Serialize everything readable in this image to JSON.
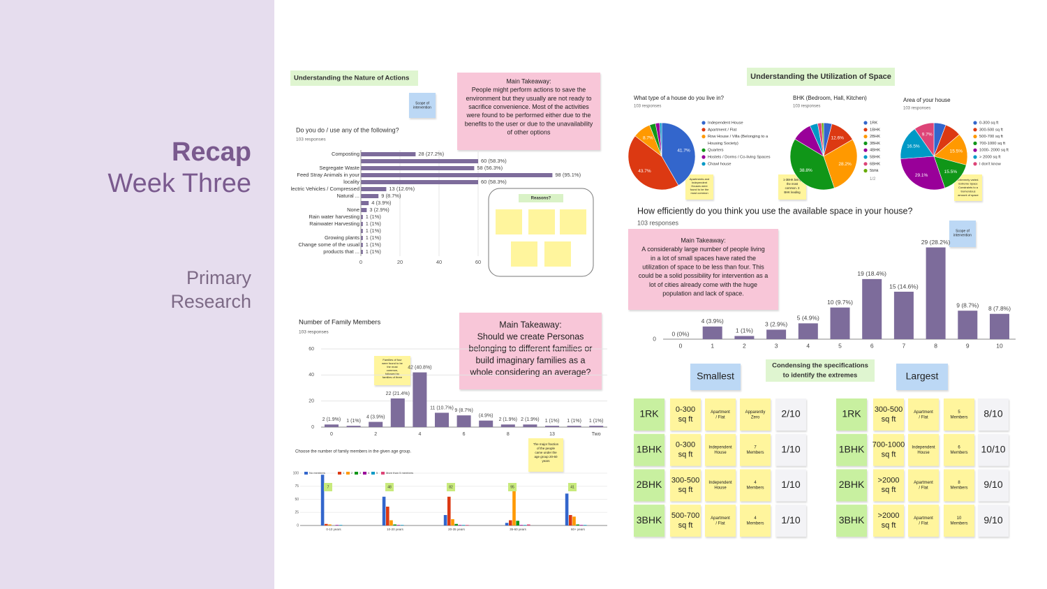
{
  "sidebar": {
    "title": "Recap",
    "subtitle": "Week Three",
    "section": [
      "Primary",
      "Research"
    ]
  },
  "labels": {
    "nature": "Understanding the Nature of Actions",
    "space": "Understanding the Utilization of Space",
    "condense": [
      "Condensing the specifications",
      "to identify the extremes"
    ],
    "reasons": "Reasons?"
  },
  "notes": [
    {
      "lines": [
        "Main Takeaway:",
        "People might perform actions to save the",
        "environment but they usually are not ready to",
        "sacrifice convenience. Most of the activities",
        "were found to be performed either due to the",
        "benefits to the user or due to the unavailability",
        "of other options"
      ]
    },
    {
      "lines": [
        "Main Takeaway:",
        "Should we create Personas",
        "belonging to different families or",
        "build imaginary families as a",
        "whole considering an average?"
      ]
    },
    {
      "lines": [
        "Main Takeaway:",
        "A considerably large number of people living",
        "in a lot of small spaces have rated the",
        "utilization of space to be less than four. This",
        "could be a solid possibility for intervention as a",
        "lot of cities already come with the huge",
        "population and lack of space."
      ]
    },
    {
      "lines": [
        "Scope of",
        "intervention"
      ]
    },
    {
      "lines": [
        "Scope of",
        "intervention"
      ]
    },
    {
      "lines": [
        "Families of four",
        "were found to be",
        "the most",
        "common,",
        "followed by",
        "families of three"
      ]
    },
    {
      "lines": [
        "The major fraction",
        "of the people",
        "came under the",
        "age group 20-60",
        "years"
      ]
    },
    {
      "lines": [
        "Apartments and",
        "Independent",
        "Houses were",
        "found to be the",
        "most common"
      ]
    },
    {
      "lines": [
        "1-3BHK being",
        "the most",
        "common. 3",
        "BHK leading"
      ]
    },
    {
      "lines": [
        "Extremely varied.",
        "Extreme Space",
        "Constraints to a",
        "tremendous",
        "amount of space"
      ]
    }
  ],
  "chart_data": [
    {
      "type": "hbar",
      "title": "Do you do / use any of the following?",
      "subtitle": "103 responses",
      "color": "#7d6c9b",
      "categories": [
        "Composting",
        null,
        "Segregate Waste",
        "Feed Stray Animals in your",
        "locality",
        "lectric Vehicles / Compressed",
        "Natural ...",
        null,
        "None",
        "Rain water harvesting",
        "Rainwater Harvesting",
        null,
        "Growing plants",
        "Change some of the usual",
        "products that ..."
      ],
      "values": [
        28,
        60,
        58,
        98,
        60,
        13,
        9,
        4,
        3,
        1,
        1,
        1,
        1,
        1,
        1
      ],
      "value_labels": [
        "28 (27.2%)",
        "60 (58.3%)",
        "58 (56.3%)",
        "98 (95.1%)",
        "60 (58.3%)",
        "13 (12.6%)",
        "9 (8.7%)",
        "4 (3.9%)",
        "3 (2.9%)",
        "1 (1%)",
        "1 (1%)",
        "1 (1%)",
        "1 (1%)",
        "1 (1%)",
        "1 (1%)"
      ],
      "xlim": [
        0,
        100
      ],
      "xticks": [
        0,
        20,
        40,
        60
      ],
      "grid": true
    },
    {
      "type": "bar",
      "title": "Number of Family Members",
      "subtitle": "103 responses",
      "color": "#7d6c9b",
      "categories": [
        "0",
        null,
        "2",
        null,
        "4",
        null,
        "6",
        null,
        "8",
        null,
        "13",
        null,
        "Two"
      ],
      "values": [
        2,
        1,
        4,
        22,
        42,
        11,
        9,
        5,
        2,
        2,
        1,
        1,
        1
      ],
      "value_labels": [
        "2 (1.9%)",
        "1 (1%)",
        "4 (3.9%)",
        "22 (21.4%)",
        "42 (40.8%)",
        "11 (10.7%)",
        "9 (8.7%)",
        "(4.9%)",
        "2 (1.9%)",
        "2 (1.9%)",
        "1 (1%)",
        "1 (1%)",
        "1 (1%)"
      ],
      "ylim": [
        0,
        60
      ],
      "yticks": [
        0,
        20,
        40,
        60
      ],
      "grid": true
    },
    {
      "type": "grouped",
      "title": "Choose the number of family members in the given age group.",
      "categories": [
        "0-10 years",
        "10-20 years",
        "20-35 years",
        "35-60 years",
        "60+ years"
      ],
      "series": [
        {
          "name": "No members",
          "color": "#3366cc",
          "values": [
            97,
            55,
            20,
            5,
            61
          ]
        },
        {
          "name": "1",
          "color": "#dc3912",
          "values": [
            3,
            36,
            55,
            10,
            20
          ]
        },
        {
          "name": "2",
          "color": "#ff9900",
          "values": [
            2,
            10,
            12,
            74,
            17
          ]
        },
        {
          "name": "3",
          "color": "#109618",
          "values": [
            0,
            2,
            3,
            9,
            2
          ]
        },
        {
          "name": "4",
          "color": "#990099",
          "values": [
            1,
            1,
            1,
            1,
            1
          ]
        },
        {
          "name": "5",
          "color": "#0099c6",
          "values": [
            1,
            1,
            1,
            1,
            1
          ]
        },
        {
          "name": "More than 5 members",
          "color": "#dd4477",
          "values": [
            0,
            0,
            1,
            2,
            0
          ]
        }
      ],
      "callouts": [
        7,
        48,
        82,
        95,
        41
      ],
      "ylim": [
        0,
        100
      ],
      "yticks": [
        0,
        25,
        50,
        75,
        100
      ],
      "grid": true
    },
    {
      "type": "pie",
      "title": "What type of a house do you live in?",
      "subtitle": "103 responses",
      "categories": [
        "Independent House",
        "Apartment / Flat",
        "Row House / Villa (Belonging to a",
        "Quarters",
        "Hostels / Dorms / Co-living Spaces",
        "Chawl house"
      ],
      "legend_extra": "Housing Society)",
      "values": [
        41.7,
        43.7,
        8.7,
        2.9,
        2,
        1
      ],
      "value_labels": [
        "41.7%",
        "43.7%",
        "8.7%",
        null,
        null,
        null
      ],
      "colors": [
        "#3366cc",
        "#dc3912",
        "#ff9900",
        "#109618",
        "#990099",
        "#0099c6"
      ]
    },
    {
      "type": "pie",
      "title": "BHK (Bedroom, Hall, Kitchen)",
      "subtitle": "103 responses",
      "pager": "1/2",
      "categories": [
        "1RK",
        "1BHK",
        "2BHK",
        "3BHK",
        "4BHK",
        "5BHK",
        "6BHK",
        "5bhk"
      ],
      "values": [
        4,
        12.6,
        28.2,
        38.8,
        9.7,
        3.8,
        1.9,
        1
      ],
      "value_labels": [
        null,
        "12.6%",
        "28.2%",
        "38.8%",
        null,
        null,
        null,
        null
      ],
      "colors": [
        "#3366cc",
        "#dc3912",
        "#ff9900",
        "#109618",
        "#990099",
        "#0099c6",
        "#dd4477",
        "#66aa00"
      ]
    },
    {
      "type": "pie",
      "title": "Area of your house",
      "subtitle": "103 responses",
      "categories": [
        "0-300 sq ft",
        "300-500 sq ft",
        "500-700 sq ft",
        "700-1000 sq ft",
        "1000- 2000 sq ft",
        "> 2000 sq ft",
        "I don't know"
      ],
      "values": [
        5.8,
        7.9,
        15.5,
        15.5,
        29.1,
        16.5,
        9.7
      ],
      "value_labels": [
        null,
        null,
        "15.5%",
        "15.5%",
        "29.1%",
        "16.5%",
        "9.7%"
      ],
      "colors": [
        "#3366cc",
        "#dc3912",
        "#ff9900",
        "#109618",
        "#990099",
        "#0099c6",
        "#dd4477"
      ]
    },
    {
      "type": "bar",
      "title": "How efficiently do you think you use the available space in your house?",
      "subtitle": "103 responses",
      "color": "#7d6c9b",
      "categories": [
        "0",
        "1",
        "2",
        "3",
        "4",
        "5",
        "6",
        "7",
        "8",
        "9",
        "10"
      ],
      "values": [
        0,
        4,
        1,
        3,
        5,
        10,
        19,
        15,
        29,
        9,
        8
      ],
      "value_labels": [
        "0 (0%)",
        "4 (3.9%)",
        "1 (1%)",
        "3 (2.9%)",
        "5 (4.9%)",
        "10 (9.7%)",
        "19 (18.4%)",
        "15 (14.6%)",
        "29 (28.2%)",
        "9 (8.7%)",
        "8 (7.8%)"
      ],
      "ylim": [
        0,
        30
      ],
      "yticks": [
        0
      ],
      "grid": true
    }
  ],
  "extremes": {
    "smallest": {
      "title": "Smallest",
      "rows": [
        [
          [
            "1RK"
          ],
          [
            "0-300",
            "sq ft"
          ],
          [
            "Apartment",
            "/ Flat"
          ],
          [
            "Apparently",
            "Zero"
          ],
          [
            "2/10"
          ]
        ],
        [
          [
            "1BHK"
          ],
          [
            "0-300",
            "sq ft"
          ],
          [
            "Independent",
            "House"
          ],
          [
            "7",
            "Members"
          ],
          [
            "1/10"
          ]
        ],
        [
          [
            "2BHK"
          ],
          [
            "300-500",
            "sq ft"
          ],
          [
            "Independent",
            "House"
          ],
          [
            "4",
            "Members"
          ],
          [
            "1/10"
          ]
        ],
        [
          [
            "3BHK"
          ],
          [
            "500-700",
            "sq ft"
          ],
          [
            "Apartment",
            "/ Flat"
          ],
          [
            "4",
            "Members"
          ],
          [
            "1/10"
          ]
        ]
      ]
    },
    "largest": {
      "title": "Largest",
      "rows": [
        [
          [
            "1RK"
          ],
          [
            "300-500",
            "sq ft"
          ],
          [
            "Apartment",
            "/ Flat"
          ],
          [
            "5",
            "Members"
          ],
          [
            "8/10"
          ]
        ],
        [
          [
            "1BHK"
          ],
          [
            "700-1000",
            "sq ft"
          ],
          [
            "Independent",
            "House"
          ],
          [
            "6",
            "Members"
          ],
          [
            "10/10"
          ]
        ],
        [
          [
            "2BHK"
          ],
          [
            ">2000",
            "sq ft"
          ],
          [
            "Apartment",
            "/ Flat"
          ],
          [
            "8",
            "Members"
          ],
          [
            "9/10"
          ]
        ],
        [
          [
            "3BHK"
          ],
          [
            ">2000",
            "sq ft"
          ],
          [
            "Apartment",
            "/ Flat"
          ],
          [
            "10",
            "Members"
          ],
          [
            "9/10"
          ]
        ]
      ]
    }
  }
}
